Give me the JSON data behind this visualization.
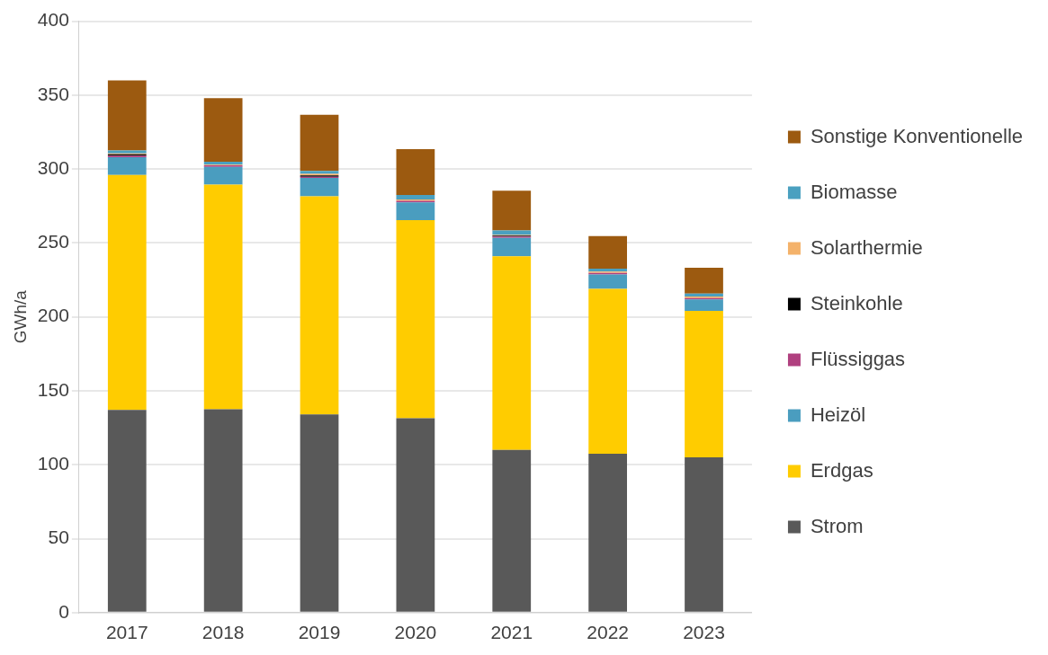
{
  "chart_data": {
    "type": "bar",
    "stacked": true,
    "ylabel": "GWh/a",
    "categories": [
      "2017",
      "2018",
      "2019",
      "2020",
      "2021",
      "2022",
      "2023"
    ],
    "ylim": [
      0,
      400
    ],
    "yticks": [
      0,
      50,
      100,
      150,
      200,
      250,
      300,
      350,
      400
    ],
    "grid": "y",
    "legend": "right",
    "series": [
      {
        "name": "Strom",
        "color": "#595959",
        "values": [
          137,
          137.5,
          134,
          131.5,
          110,
          107.5,
          105
        ]
      },
      {
        "name": "Erdgas",
        "color": "#ffcc00",
        "values": [
          159,
          152,
          147.5,
          134,
          131,
          111.5,
          99
        ]
      },
      {
        "name": "Heizöl",
        "color": "#4a9dbf",
        "values": [
          12,
          12,
          12.5,
          12,
          12.4,
          9.7,
          7.8
        ]
      },
      {
        "name": "Flüssiggas",
        "color": "#b0407f",
        "values": [
          1,
          1,
          0.7,
          1,
          1,
          1,
          1
        ]
      },
      {
        "name": "Steinkohle",
        "color": "#000000",
        "values": [
          1,
          null,
          1,
          null,
          0.5,
          null,
          null
        ]
      },
      {
        "name": "Solarthermie",
        "color": "#f4b26a",
        "values": [
          0.5,
          0.5,
          1,
          1,
          0.5,
          1,
          1
        ]
      },
      {
        "name": "Biomasse",
        "color": "#4aa0c0",
        "values": [
          2,
          2,
          2,
          3,
          3,
          2,
          2
        ]
      },
      {
        "name": "Sonstige Konventionelle",
        "color": "#9c5a10",
        "values": [
          47.5,
          43,
          38,
          31,
          27,
          22,
          17.5
        ]
      }
    ]
  }
}
